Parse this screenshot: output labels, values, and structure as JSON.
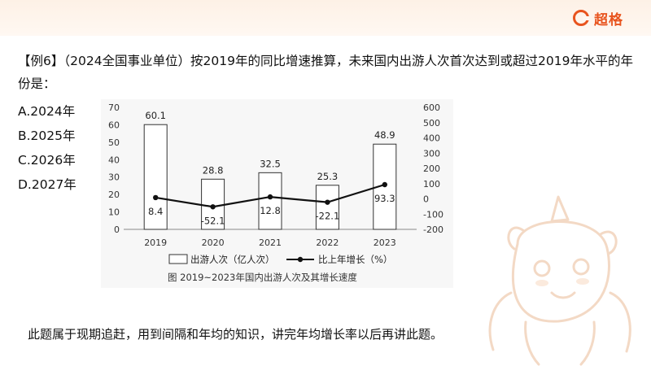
{
  "brand": {
    "name": "超格",
    "accent": "#e8541e"
  },
  "question": {
    "text": "【例6】（2024全国事业单位）按2019年的同比增速推算，未来国内出游人次首次达到或超过2019年水平的年份是："
  },
  "options": [
    {
      "label": "A.2024年"
    },
    {
      "label": "B.2025年"
    },
    {
      "label": "C.2026年"
    },
    {
      "label": "D.2027年"
    }
  ],
  "chart_data": {
    "type": "bar",
    "categories": [
      "2019",
      "2020",
      "2021",
      "2022",
      "2023"
    ],
    "series": [
      {
        "name": "出游人次（亿人次）",
        "type": "bar",
        "axis": "left",
        "values": [
          60.1,
          28.8,
          32.5,
          25.3,
          48.9
        ],
        "labels": [
          "60.1",
          "28.8",
          "32.5",
          "25.3",
          "48.9"
        ]
      },
      {
        "name": "比上年增长（%）",
        "type": "line",
        "axis": "right",
        "values": [
          8.4,
          -52.1,
          12.8,
          -22.1,
          93.3
        ],
        "labels": [
          "8.4",
          "-52.1",
          "12.8",
          "-22.1",
          "93.3"
        ]
      }
    ],
    "left_axis": {
      "ticks": [
        "0",
        "10",
        "20",
        "30",
        "40",
        "50",
        "60",
        "70"
      ],
      "range": [
        0,
        70
      ]
    },
    "right_axis": {
      "ticks": [
        "-200",
        "-100",
        "0",
        "100",
        "200",
        "300",
        "400",
        "500",
        "600"
      ],
      "range": [
        -200,
        600
      ]
    },
    "caption": "图  2019~2023年国内出游人次及其增长速度",
    "legend_position": "bottom",
    "grid": false
  },
  "note": {
    "text": "此题属于现期追赶，用到间隔和年均的知识，讲完年均增长率以后再讲此题。"
  }
}
